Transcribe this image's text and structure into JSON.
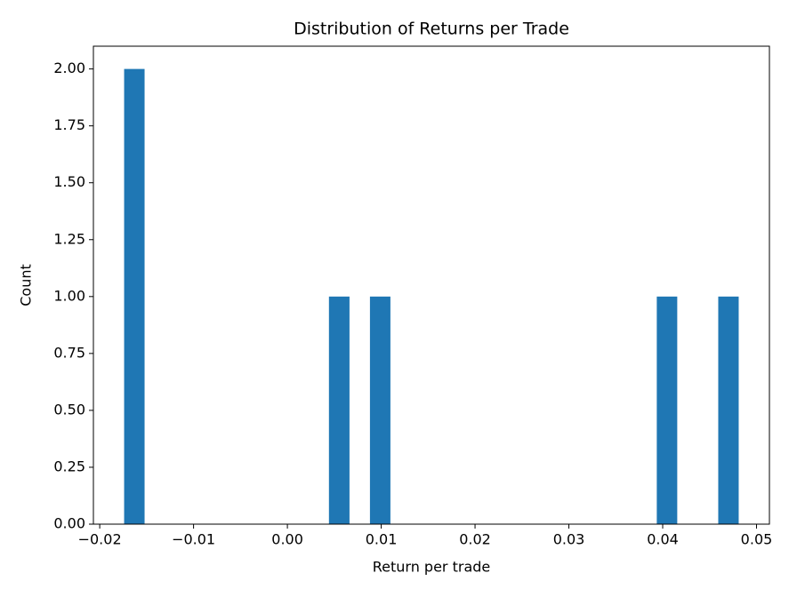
{
  "chart_data": {
    "type": "histogram",
    "title": "Distribution of Returns per Trade",
    "x_label": "Return per trade",
    "y_label": "Count",
    "color": "#1f77b4",
    "bins": [
      -0.0174,
      -0.01522,
      -0.01303,
      -0.01085,
      -0.00867,
      -0.00648,
      -0.0043,
      -0.00212,
      7e-05,
      0.00225,
      0.00443,
      0.00662,
      0.0088,
      0.01098,
      0.01317,
      0.01535,
      0.01753,
      0.01972,
      0.0219,
      0.02408,
      0.02627,
      0.02845,
      0.03063,
      0.03282,
      0.035,
      0.03718,
      0.03937,
      0.04155,
      0.04373,
      0.04592,
      0.0481
    ],
    "counts": [
      2,
      0,
      0,
      0,
      0,
      0,
      0,
      0,
      0,
      0,
      1,
      0,
      1,
      0,
      0,
      0,
      0,
      0,
      0,
      0,
      0,
      0,
      0,
      0,
      0,
      0,
      1,
      0,
      0,
      1
    ],
    "xlim": [
      -0.020675,
      0.051375
    ],
    "ylim": [
      0,
      2.1
    ],
    "xticks": [
      {
        "value": -0.02,
        "label": "−0.02"
      },
      {
        "value": -0.01,
        "label": "−0.01"
      },
      {
        "value": 0,
        "label": "0.00"
      },
      {
        "value": 0.01,
        "label": "0.01"
      },
      {
        "value": 0.02,
        "label": "0.02"
      },
      {
        "value": 0.03,
        "label": "0.03"
      },
      {
        "value": 0.04,
        "label": "0.04"
      },
      {
        "value": 0.05,
        "label": "0.05"
      }
    ],
    "yticks": [
      {
        "value": 0,
        "label": "0.00"
      },
      {
        "value": 0.25,
        "label": "0.25"
      },
      {
        "value": 0.5,
        "label": "0.50"
      },
      {
        "value": 0.75,
        "label": "0.75"
      },
      {
        "value": 1,
        "label": "1.00"
      },
      {
        "value": 1.25,
        "label": "1.25"
      },
      {
        "value": 1.5,
        "label": "1.50"
      },
      {
        "value": 1.75,
        "label": "1.75"
      },
      {
        "value": 2,
        "label": "2.00"
      }
    ],
    "grid": false
  }
}
